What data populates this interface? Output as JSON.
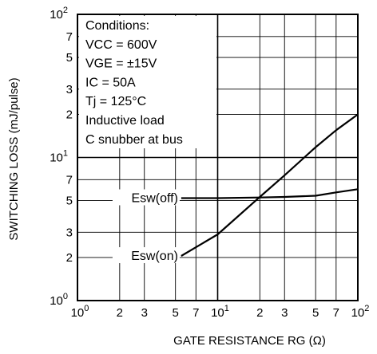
{
  "chart_data": {
    "type": "line",
    "xlabel": "GATE RESISTANCE  RG (Ω)",
    "ylabel": "SWITCHING LOSS (mJ/pulse)",
    "xscale": "log",
    "yscale": "log",
    "xlim": [
      1,
      100
    ],
    "ylim": [
      1,
      100
    ],
    "grid": true,
    "x_ticks": [
      {
        "value": 1,
        "base": "10",
        "exp": "0"
      },
      {
        "value": 2,
        "base": "2",
        "exp": ""
      },
      {
        "value": 3,
        "base": "3",
        "exp": ""
      },
      {
        "value": 5,
        "base": "5",
        "exp": ""
      },
      {
        "value": 7,
        "base": "7",
        "exp": ""
      },
      {
        "value": 10,
        "base": "10",
        "exp": "1"
      },
      {
        "value": 20,
        "base": "2",
        "exp": ""
      },
      {
        "value": 30,
        "base": "3",
        "exp": ""
      },
      {
        "value": 50,
        "base": "5",
        "exp": ""
      },
      {
        "value": 70,
        "base": "7",
        "exp": ""
      },
      {
        "value": 100,
        "base": "10",
        "exp": "2"
      }
    ],
    "y_ticks": [
      {
        "value": 1,
        "base": "10",
        "exp": "0"
      },
      {
        "value": 2,
        "base": "2",
        "exp": ""
      },
      {
        "value": 3,
        "base": "3",
        "exp": ""
      },
      {
        "value": 5,
        "base": "5",
        "exp": ""
      },
      {
        "value": 7,
        "base": "7",
        "exp": ""
      },
      {
        "value": 10,
        "base": "10",
        "exp": "1"
      },
      {
        "value": 20,
        "base": "2",
        "exp": ""
      },
      {
        "value": 30,
        "base": "3",
        "exp": ""
      },
      {
        "value": 50,
        "base": "5",
        "exp": ""
      },
      {
        "value": 70,
        "base": "7",
        "exp": ""
      },
      {
        "value": 100,
        "base": "10",
        "exp": "2"
      }
    ],
    "conditions": [
      "Conditions:",
      "VCC = 600V",
      "VGE = ±15V",
      "IC = 50A",
      "Tj = 125°C",
      "Inductive load",
      "C snubber at bus"
    ],
    "series": [
      {
        "name": "Esw(off)",
        "x": [
          5.5,
          10,
          20,
          30,
          50,
          70,
          100
        ],
        "y": [
          5.2,
          5.2,
          5.25,
          5.3,
          5.4,
          5.7,
          6.0
        ]
      },
      {
        "name": "Esw(on)",
        "x": [
          5.5,
          10,
          20,
          30,
          50,
          70,
          100
        ],
        "y": [
          2.05,
          2.9,
          5.3,
          7.5,
          11.8,
          15.5,
          20.0
        ]
      }
    ]
  }
}
